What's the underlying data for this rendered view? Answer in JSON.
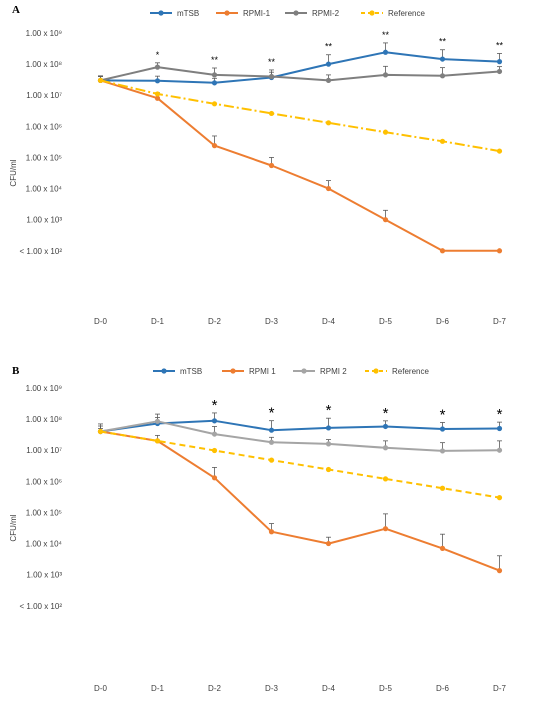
{
  "chart_data": [
    {
      "type": "line",
      "panel_label": "A",
      "ylabel": "CFU/ml",
      "y_scale": "log",
      "ylim": [
        1,
        1000000000
      ],
      "y_ticks": [
        {
          "value": 1000000000,
          "label": "1.00 x 10⁹"
        },
        {
          "value": 100000000,
          "label": "1.00 x 10⁸"
        },
        {
          "value": 10000000,
          "label": "1.00 x 10⁷"
        },
        {
          "value": 1000000,
          "label": "1.00 x 10⁶"
        },
        {
          "value": 100000,
          "label": "1.00 x 10⁵"
        },
        {
          "value": 10000,
          "label": "1.00 x 10⁴"
        },
        {
          "value": 1000,
          "label": "1.00 x 10³"
        },
        {
          "value": 100,
          "label": "< 1.00 x 10²"
        }
      ],
      "categories": [
        "D-0",
        "D-1",
        "D-2",
        "D-3",
        "D-4",
        "D-5",
        "D-6",
        "D-7"
      ],
      "legend_position": "top",
      "series": [
        {
          "name": "mTSB",
          "color": "#2e75b6",
          "dash": "solid",
          "values": [
            30000000,
            29000000,
            25000000,
            37000000,
            100000000,
            240000000,
            145000000,
            120000000
          ],
          "error": [
            12000000,
            12000000,
            10000000,
            18000000,
            100000000,
            240000000,
            145000000,
            100000000
          ]
        },
        {
          "name": "RPMI-1",
          "color": "#ed7d31",
          "dash": "solid",
          "values": [
            30000000,
            8000000,
            240000,
            55000,
            10000,
            1000,
            100,
            100
          ],
          "error": [
            10000000,
            4000000,
            250000,
            45000,
            8000,
            1000,
            null,
            null
          ]
        },
        {
          "name": "RPMI-2",
          "color": "#7f7f7f",
          "dash": "solid",
          "values": [
            30000000,
            80000000,
            45000000,
            40000000,
            30000000,
            45000000,
            42000000,
            58000000
          ],
          "error": [
            10000000,
            30000000,
            30000000,
            25000000,
            15000000,
            40000000,
            35000000,
            25000000
          ]
        },
        {
          "name": "Reference",
          "color": "#ffc000",
          "dash": "dashdot",
          "values": [
            30000000,
            11000000,
            5300000,
            2600000,
            1300000,
            650000,
            330000,
            160000
          ],
          "error": [
            null,
            null,
            null,
            null,
            null,
            null,
            null,
            null
          ]
        }
      ],
      "annotations": [
        {
          "category": "D-1",
          "text": "*"
        },
        {
          "category": "D-2",
          "text": "**"
        },
        {
          "category": "D-3",
          "text": "**"
        },
        {
          "category": "D-4",
          "text": "**"
        },
        {
          "category": "D-5",
          "text": "**"
        },
        {
          "category": "D-6",
          "text": "**"
        },
        {
          "category": "D-7",
          "text": "**"
        }
      ]
    },
    {
      "type": "line",
      "panel_label": "B",
      "ylabel": "CFU/ml",
      "y_scale": "log",
      "ylim": [
        1,
        1000000000
      ],
      "y_ticks": [
        {
          "value": 1000000000,
          "label": "1.00 x 10⁹"
        },
        {
          "value": 100000000,
          "label": "1.00 x 10⁸"
        },
        {
          "value": 10000000,
          "label": "1.00 x 10⁷"
        },
        {
          "value": 1000000,
          "label": "1.00 x 10⁶"
        },
        {
          "value": 100000,
          "label": "1.00 x 10⁵"
        },
        {
          "value": 10000,
          "label": "1.00 x 10⁴"
        },
        {
          "value": 1000,
          "label": "1.00 x 10³"
        },
        {
          "value": 100,
          "label": "< 1.00 x 10²"
        }
      ],
      "categories": [
        "D-0",
        "D-1",
        "D-2",
        "D-3",
        "D-4",
        "D-5",
        "D-6",
        "D-7"
      ],
      "legend_position": "top",
      "series": [
        {
          "name": "mTSB",
          "color": "#2e75b6",
          "dash": "solid",
          "values": [
            40000000,
            72000000,
            88000000,
            44000000,
            52000000,
            58000000,
            48000000,
            50000000
          ],
          "error": [
            30000000,
            40000000,
            70000000,
            45000000,
            55000000,
            30000000,
            30000000,
            30000000
          ]
        },
        {
          "name": "RPMI 1",
          "color": "#ed7d31",
          "dash": "solid",
          "values": [
            40000000,
            20000000,
            1300000,
            24000,
            10000,
            30000,
            7000,
            1350
          ],
          "error": [
            10000000,
            10000000,
            1500000,
            20000,
            6000,
            60000,
            13000,
            2700
          ]
        },
        {
          "name": "RPMI 2",
          "color": "#a5a5a5",
          "dash": "solid",
          "values": [
            40000000,
            85000000,
            33000000,
            18000000,
            16000000,
            12000000,
            9500000,
            10000000
          ],
          "error": [
            20000000,
            60000000,
            25000000,
            8000000,
            6000000,
            8000000,
            8000000,
            10000000
          ]
        },
        {
          "name": "Reference",
          "color": "#ffc000",
          "dash": "dashed",
          "values": [
            40000000,
            20000000,
            9800000,
            4800000,
            2400000,
            1200000,
            600000,
            300000
          ],
          "error": [
            null,
            null,
            null,
            null,
            null,
            null,
            null,
            null
          ]
        }
      ],
      "annotations": [
        {
          "category": "D-2",
          "text": "*"
        },
        {
          "category": "D-3",
          "text": "*"
        },
        {
          "category": "D-4",
          "text": "*"
        },
        {
          "category": "D-5",
          "text": "*"
        },
        {
          "category": "D-6",
          "text": "*"
        },
        {
          "category": "D-7",
          "text": "*"
        }
      ]
    }
  ]
}
